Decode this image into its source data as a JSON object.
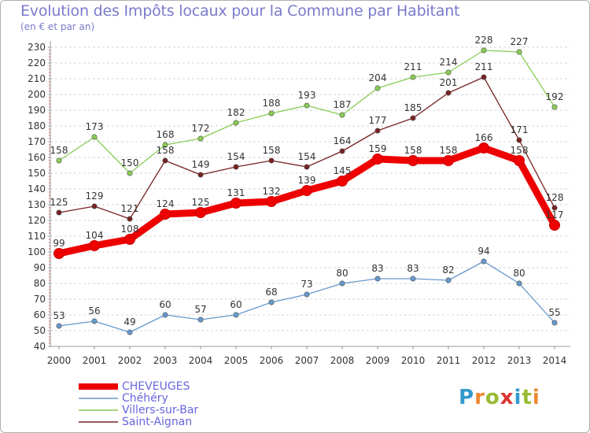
{
  "chart_data": {
    "type": "line",
    "title": "Evolution des Impôts locaux pour la Commune par Habitant",
    "subtitle": "(en € et par an)",
    "x": [
      "2000",
      "2001",
      "2002",
      "2003",
      "2004",
      "2005",
      "2006",
      "2007",
      "2008",
      "2009",
      "2010",
      "2011",
      "2012",
      "2013",
      "2014"
    ],
    "ylim": [
      40,
      230
    ],
    "yticks": [
      40,
      50,
      60,
      70,
      80,
      90,
      100,
      110,
      120,
      130,
      140,
      150,
      160,
      170,
      180,
      190,
      200,
      210,
      220,
      230
    ],
    "grid": "horizontal",
    "legend_position": "bottom-left",
    "series": [
      {
        "name": "CHEVEUGES",
        "color": "#ee0000",
        "values": [
          99,
          104,
          108,
          124,
          125,
          131,
          132,
          139,
          145,
          159,
          158,
          158,
          166,
          158,
          117
        ],
        "labels": [
          "99",
          "104",
          "108",
          "124",
          "125",
          "131",
          "132",
          "139",
          "145",
          "159",
          "158",
          "158",
          "166",
          "158",
          "117"
        ]
      },
      {
        "name": "Chéhéry",
        "color": "#6699cc",
        "values": [
          53,
          56,
          49,
          60,
          57,
          60,
          68,
          73,
          80,
          83,
          83,
          82,
          94,
          80,
          55
        ],
        "labels": [
          "53",
          "56",
          "49",
          "60",
          "57",
          "60",
          "68",
          "73",
          "80",
          "83",
          "83",
          "82",
          "94",
          "80",
          "55"
        ]
      },
      {
        "name": "Villers-sur-Bar",
        "color": "#88cc55",
        "values": [
          158,
          173,
          150,
          168,
          172,
          182,
          188,
          193,
          187,
          204,
          211,
          214,
          228,
          227,
          192
        ],
        "labels": [
          "158",
          "173",
          "150",
          "168",
          "172",
          "182",
          "188",
          "193",
          "187",
          "204",
          "211",
          "214",
          "228",
          "227",
          "192"
        ]
      },
      {
        "name": "Saint-Aignan",
        "color": "#772222",
        "values": [
          125,
          129,
          121,
          158,
          149,
          154,
          158,
          154,
          164,
          177,
          185,
          201,
          211,
          171,
          128
        ],
        "labels": [
          "125",
          "129",
          "121",
          "158",
          "149",
          "154",
          "158",
          "154",
          "164",
          "177",
          "185",
          "201",
          "211",
          "171",
          "128"
        ]
      }
    ]
  },
  "logo": {
    "letters": [
      "P",
      "r",
      "o",
      "x",
      "i",
      "t",
      "i"
    ],
    "colors": [
      "#3399cc",
      "#ee8833",
      "#99bb33",
      "#dd3333",
      "#3399cc",
      "#99bb33",
      "#ee8833"
    ]
  }
}
